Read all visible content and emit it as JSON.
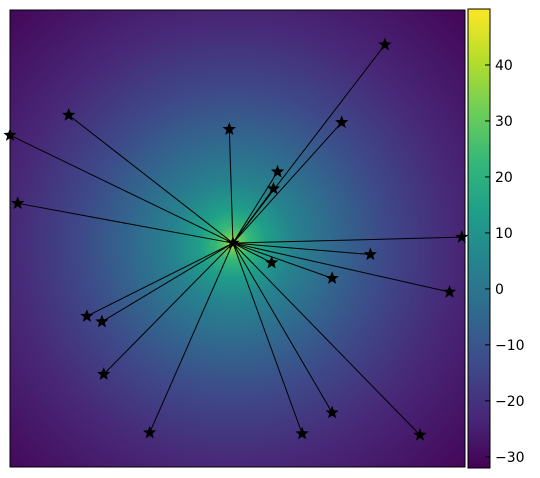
{
  "chart_data": {
    "type": "heatmap",
    "title": "",
    "xlabel": "",
    "ylabel": "",
    "x_ticks_visible": false,
    "y_ticks_visible": false,
    "xlim": [
      0,
      100
    ],
    "ylim": [
      0,
      100
    ],
    "grid": false,
    "colormap": "viridis",
    "colorbar": {
      "range": [
        -32,
        50
      ],
      "ticks": [
        -30,
        -20,
        -10,
        0,
        10,
        20,
        30,
        40
      ],
      "tick_labels": [
        "−30",
        "−20",
        "−10",
        "0",
        "10",
        "20",
        "30",
        "40"
      ]
    },
    "field": {
      "description_values": "radial field peaking at center point",
      "center": [
        49.0,
        49.0
      ],
      "peak_value": 50,
      "floor_value": -32
    },
    "center_marker": {
      "x": 49.0,
      "y": 49.0,
      "marker": "star"
    },
    "points": [
      {
        "x": 82.4,
        "y": 92.4
      },
      {
        "x": 12.9,
        "y": 77.0
      },
      {
        "x": 0.0,
        "y": 72.6
      },
      {
        "x": 48.2,
        "y": 73.9
      },
      {
        "x": 72.9,
        "y": 75.4
      },
      {
        "x": 58.8,
        "y": 64.6
      },
      {
        "x": 57.9,
        "y": 60.9
      },
      {
        "x": 1.7,
        "y": 57.7
      },
      {
        "x": 99.3,
        "y": 50.3
      },
      {
        "x": 79.2,
        "y": 46.5
      },
      {
        "x": 57.5,
        "y": 44.7
      },
      {
        "x": 70.8,
        "y": 41.3
      },
      {
        "x": 96.6,
        "y": 38.3
      },
      {
        "x": 16.9,
        "y": 33.0
      },
      {
        "x": 20.2,
        "y": 31.8
      },
      {
        "x": 20.6,
        "y": 20.3
      },
      {
        "x": 70.8,
        "y": 11.9
      },
      {
        "x": 30.7,
        "y": 7.5
      },
      {
        "x": 64.2,
        "y": 7.3
      },
      {
        "x": 90.1,
        "y": 7.0
      }
    ],
    "edges": "each point connected to center_marker by a straight black line"
  },
  "colors": {
    "viridis_stops": [
      "#440154",
      "#482878",
      "#3e4989",
      "#31688e",
      "#26828e",
      "#1f9e89",
      "#35b779",
      "#6ece58",
      "#b5de2b",
      "#fde725"
    ],
    "line": "#000000",
    "marker": "#000000",
    "frame": "#000000"
  }
}
